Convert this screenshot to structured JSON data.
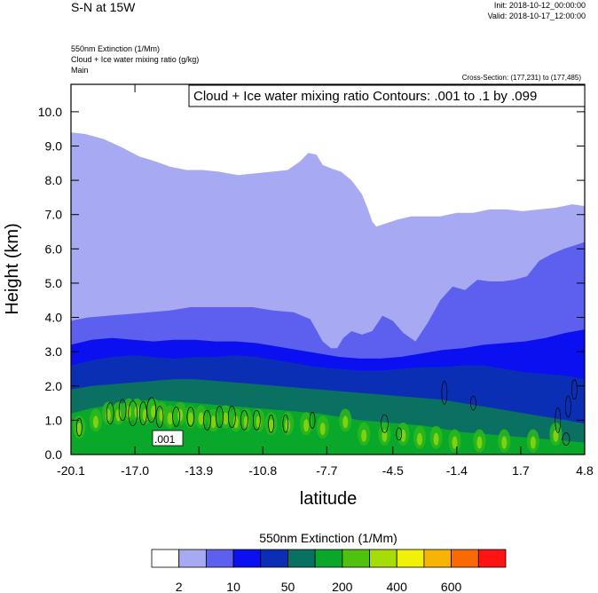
{
  "header": {
    "title": "S-N at 15W",
    "init": "Init: 2018-10-12_00:00:00",
    "valid": "Valid: 2018-10-17_12:00:00",
    "field1": "550nm Extinction   (1/Mm)",
    "field2": "Cloud + Ice water mixing ratio   (g/kg)",
    "field3": "Main",
    "cross_section": "Cross-Section: (177,231) to (177,485)"
  },
  "chart_data": {
    "type": "area",
    "title": "",
    "annotation": "Cloud + Ice water mixing ratio Contours: .001 to .1 by .099",
    "xlabel": "latitude",
    "ylabel": "Height (km)",
    "x_ticks": [
      "-20.1",
      "-17.0",
      "-13.9",
      "-10.8",
      "-7.7",
      "-4.5",
      "-1.4",
      "1.7",
      "4.8"
    ],
    "y_ticks": [
      "0.0",
      "1.0",
      "2.0",
      "3.0",
      "4.0",
      "5.0",
      "6.0",
      "7.0",
      "8.0",
      "9.0",
      "10.0"
    ],
    "xlim": [
      -20.1,
      4.8
    ],
    "ylim": [
      0,
      10.8
    ],
    "contour_label": ".001",
    "colorbar": {
      "title": "550nm Extinction  (1/Mm)",
      "colors": [
        "#ffffff",
        "#a7aaf2",
        "#5d60ee",
        "#0a10f0",
        "#0a2eb4",
        "#0a7062",
        "#0aa82a",
        "#4ec20e",
        "#a6dc08",
        "#f0f008",
        "#f8b404",
        "#fb6a02",
        "#ff1414"
      ],
      "labels": [
        "2",
        "10",
        "50",
        "200",
        "400",
        "600"
      ]
    },
    "series": [
      {
        "level_color": "#a7aaf2",
        "x": [
          -20.1,
          -19.4,
          -18.5,
          -17.6,
          -16.8,
          -16.0,
          -15.3,
          -14.5,
          -13.7,
          -12.9,
          -12.0,
          -11.2,
          -10.4,
          -9.6,
          -9.0,
          -8.6,
          -8.2,
          -7.9,
          -7.5,
          -7.0,
          -6.5,
          -6.0,
          -5.7,
          -5.5,
          -5.3,
          -4.8,
          -4.3,
          -3.6,
          -2.9,
          -2.2,
          -1.4,
          -0.6,
          0.2,
          1.0,
          1.8,
          2.6,
          3.4,
          4.2,
          4.8
        ],
        "y": [
          9.4,
          9.35,
          9.2,
          8.95,
          8.7,
          8.55,
          8.4,
          8.3,
          8.3,
          8.25,
          8.15,
          8.2,
          8.25,
          8.3,
          8.55,
          8.8,
          8.75,
          8.45,
          8.35,
          8.25,
          8.0,
          7.6,
          7.15,
          6.8,
          6.65,
          6.75,
          6.85,
          6.95,
          6.95,
          6.95,
          7.05,
          7.05,
          7.15,
          7.15,
          7.1,
          7.15,
          7.2,
          7.3,
          7.25
        ]
      },
      {
        "level_color": "#5d60ee",
        "x": [
          -20.1,
          -19.3,
          -18.3,
          -17.3,
          -16.3,
          -15.3,
          -14.3,
          -13.3,
          -12.3,
          -11.3,
          -10.3,
          -9.3,
          -8.5,
          -7.9,
          -7.5,
          -7.2,
          -6.9,
          -6.5,
          -6.0,
          -5.5,
          -5.0,
          -4.5,
          -4.0,
          -3.4,
          -2.8,
          -2.2,
          -1.6,
          -1.0,
          -0.4,
          0.2,
          0.8,
          1.4,
          2.0,
          2.6,
          3.2,
          3.8,
          4.3,
          4.8
        ],
        "y": [
          3.9,
          4.0,
          4.05,
          4.1,
          4.15,
          4.2,
          4.3,
          4.3,
          4.3,
          4.3,
          4.2,
          4.15,
          3.95,
          3.3,
          3.1,
          3.1,
          3.4,
          3.6,
          3.5,
          3.6,
          4.05,
          3.9,
          3.55,
          3.3,
          3.85,
          4.5,
          4.9,
          4.8,
          5.1,
          5.05,
          5.05,
          5.1,
          5.2,
          5.65,
          5.85,
          6.0,
          6.1,
          6.2
        ]
      },
      {
        "level_color": "#0a10f0",
        "x": [
          -20.1,
          -19.1,
          -18.1,
          -17.1,
          -16.1,
          -15.1,
          -14.1,
          -13.1,
          -12.1,
          -11.1,
          -10.1,
          -9.1,
          -8.1,
          -7.1,
          -6.1,
          -5.1,
          -4.1,
          -3.1,
          -2.1,
          -1.1,
          -0.1,
          0.9,
          1.9,
          2.9,
          3.9,
          4.8
        ],
        "y": [
          3.2,
          3.35,
          3.4,
          3.35,
          3.3,
          3.35,
          3.35,
          3.3,
          3.3,
          3.25,
          3.15,
          3.05,
          2.95,
          2.85,
          2.8,
          2.8,
          2.85,
          2.95,
          3.05,
          3.1,
          3.2,
          3.25,
          3.3,
          3.4,
          3.55,
          3.65
        ]
      },
      {
        "level_color": "#0a2eb4",
        "x": [
          -20.1,
          -19.1,
          -18.1,
          -17.1,
          -16.1,
          -15.1,
          -14.1,
          -13.1,
          -12.1,
          -11.1,
          -10.1,
          -9.1,
          -8.1,
          -7.1,
          -6.1,
          -5.1,
          -4.1,
          -3.1,
          -2.1,
          -1.1,
          -0.1,
          0.9,
          1.9,
          2.9,
          3.9,
          4.8
        ],
        "y": [
          2.6,
          2.75,
          2.85,
          2.9,
          2.85,
          2.8,
          2.85,
          2.85,
          2.9,
          2.85,
          2.75,
          2.65,
          2.55,
          2.5,
          2.45,
          2.45,
          2.5,
          2.55,
          2.55,
          2.6,
          2.6,
          2.5,
          2.4,
          2.35,
          2.3,
          2.2
        ]
      },
      {
        "level_color": "#0a7062",
        "x": [
          -20.1,
          -19.1,
          -18.1,
          -17.1,
          -16.1,
          -15.1,
          -14.1,
          -13.1,
          -12.1,
          -11.1,
          -10.1,
          -9.1,
          -8.1,
          -7.1,
          -6.1,
          -5.1,
          -4.1,
          -3.1,
          -2.1,
          -1.1,
          -0.1,
          0.9,
          1.9,
          2.9,
          3.9,
          4.8
        ],
        "y": [
          1.9,
          2.0,
          2.05,
          2.1,
          2.15,
          2.2,
          2.2,
          2.15,
          2.1,
          2.05,
          2.0,
          1.95,
          1.9,
          1.85,
          1.8,
          1.75,
          1.7,
          1.65,
          1.6,
          1.5,
          1.4,
          1.3,
          1.2,
          1.1,
          1.0,
          0.9
        ]
      },
      {
        "level_color": "#0aa82a",
        "x": [
          -20.1,
          -19.1,
          -18.1,
          -17.1,
          -16.1,
          -15.1,
          -14.1,
          -13.1,
          -12.1,
          -11.1,
          -10.1,
          -9.1,
          -8.1,
          -7.1,
          -6.1,
          -5.1,
          -4.1,
          -3.1,
          -2.1,
          -1.1,
          -0.1,
          0.9,
          1.9,
          2.9,
          3.9,
          4.8
        ],
        "y": [
          1.2,
          1.35,
          1.45,
          1.55,
          1.6,
          1.55,
          1.5,
          1.45,
          1.4,
          1.35,
          1.3,
          1.25,
          1.2,
          1.1,
          1.0,
          0.95,
          0.9,
          0.85,
          0.75,
          0.65,
          0.6,
          0.55,
          0.5,
          0.45,
          0.4,
          0.35
        ]
      }
    ]
  }
}
